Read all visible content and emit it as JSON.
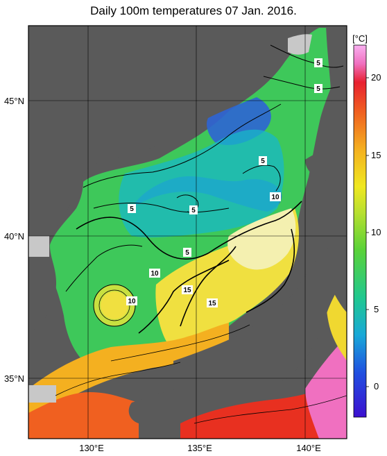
{
  "title": "Daily 100m temperatures 07 Jan. 2016.",
  "colorbar": {
    "unit": "[°C]",
    "ticks": [
      "20",
      "15",
      "10",
      "5",
      "0"
    ],
    "range": [
      -2,
      22
    ]
  },
  "map": {
    "lat_labels": [
      "45°N",
      "40°N",
      "35°N"
    ],
    "lon_labels": [
      "130°E",
      "135°E",
      "140°E"
    ],
    "contour_labels": [
      "5",
      "5",
      "5",
      "5",
      "5",
      "5",
      "10",
      "10",
      "10",
      "15",
      "15"
    ]
  },
  "colors": {
    "land": "#5a5a5a",
    "nodata": "#c8c8c8",
    "cold": "#2e64d4",
    "cool": "#18b8c8",
    "mild": "#3ec85a",
    "warm": "#f0e040",
    "hot": "#f06020",
    "very_hot": "#f060e0"
  }
}
